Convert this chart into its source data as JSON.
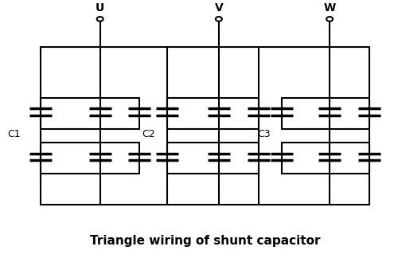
{
  "title": "Triangle wiring of shunt capacitor",
  "title_fontsize": 11,
  "background_color": "#ffffff",
  "line_color": "#000000",
  "lw": 1.5,
  "cap_lw": 2.5,
  "labels": [
    "U",
    "V",
    "W"
  ],
  "cap_labels": [
    "C1",
    "C2",
    "C3"
  ],
  "figsize": [
    5.0,
    3.29
  ],
  "dpi": 100
}
